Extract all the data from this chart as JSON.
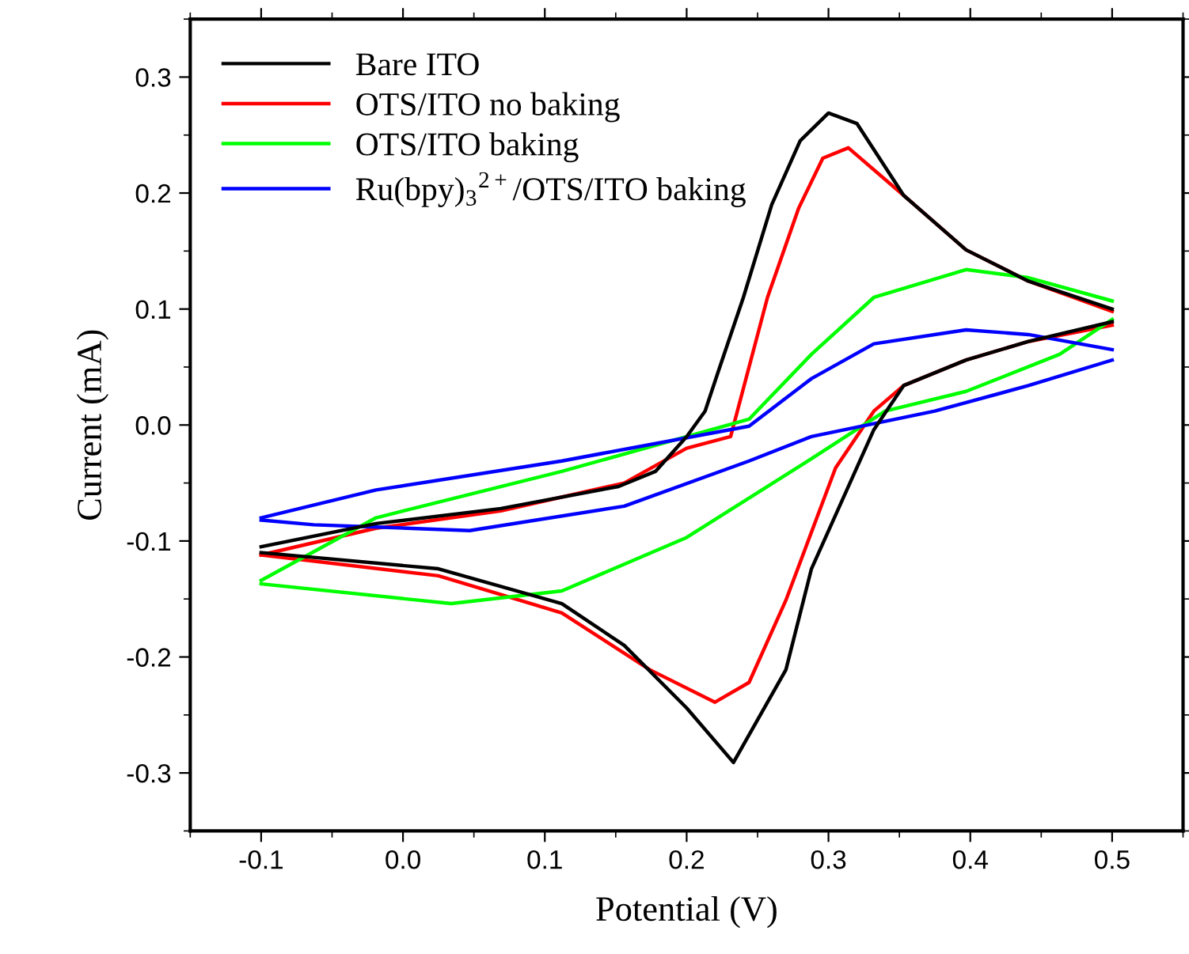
{
  "chart_data": {
    "type": "line",
    "xlabel": "Potential (V)",
    "ylabel": "Current (mA)",
    "xlim": [
      -0.15,
      0.55
    ],
    "ylim": [
      -0.35,
      0.35
    ],
    "xticks": [
      {
        "value": -0.1,
        "label": "-0.1"
      },
      {
        "value": 0.0,
        "label": "0.0"
      },
      0.1,
      0.2,
      0.3,
      0.4,
      0.5
    ],
    "yticks": [
      {
        "value": -0.3,
        "label": "-0.3"
      },
      {
        "value": -0.2,
        "label": "-0.2"
      },
      {
        "value": -0.1,
        "label": "-0.1"
      },
      {
        "value": 0.0,
        "label": "0.0"
      },
      0.1,
      0.2,
      0.3
    ],
    "grid": false,
    "legend": "top left",
    "line_style": "solid",
    "marker": "none",
    "series": [
      {
        "name": "Bare ITO",
        "color": "#000000",
        "x": [
          -0.1,
          -0.019,
          0.069,
          0.152,
          0.178,
          0.2,
          0.213,
          0.222,
          0.24,
          0.26,
          0.28,
          0.3,
          0.32,
          0.353,
          0.397,
          0.441,
          0.5
        ],
        "values": [
          -0.105,
          -0.085,
          -0.072,
          -0.053,
          -0.04,
          -0.01,
          0.012,
          0.045,
          0.11,
          0.19,
          0.245,
          0.269,
          0.26,
          0.198,
          0.151,
          0.124,
          0.1
        ]
      },
      {
        "color": "#000000",
        "x": [
          0.5,
          0.441,
          0.397,
          0.353,
          0.332,
          0.288,
          0.27,
          0.233,
          0.2,
          0.156,
          0.112,
          0.025,
          -0.1
        ],
        "values": [
          0.089,
          0.072,
          0.056,
          0.034,
          -0.004,
          -0.124,
          -0.211,
          -0.291,
          -0.244,
          -0.19,
          -0.154,
          -0.124,
          -0.11
        ]
      },
      {
        "name": "OTS/ITO no baking",
        "color": "#ff0000",
        "x": [
          -0.1,
          -0.019,
          0.069,
          0.156,
          0.2,
          0.231,
          0.257,
          0.279,
          0.296,
          0.314,
          0.353,
          0.397,
          0.441,
          0.5
        ],
        "values": [
          -0.112,
          -0.089,
          -0.074,
          -0.05,
          -0.02,
          -0.01,
          0.11,
          0.187,
          0.23,
          0.239,
          0.198,
          0.151,
          0.124,
          0.098
        ]
      },
      {
        "color": "#ff0000",
        "x": [
          0.5,
          0.441,
          0.397,
          0.353,
          0.332,
          0.305,
          0.27,
          0.244,
          0.22,
          0.174,
          0.112,
          0.025,
          -0.1
        ],
        "values": [
          0.086,
          0.072,
          0.056,
          0.034,
          0.012,
          -0.037,
          -0.151,
          -0.222,
          -0.239,
          -0.211,
          -0.162,
          -0.13,
          -0.112
        ]
      },
      {
        "name": "OTS/ITO baking",
        "color": "#00ff00",
        "x": [
          -0.1,
          -0.019,
          0.112,
          0.244,
          0.288,
          0.332,
          0.397,
          0.441,
          0.5
        ],
        "values": [
          -0.134,
          -0.08,
          -0.04,
          0.005,
          0.061,
          0.11,
          0.134,
          0.127,
          0.107
        ]
      },
      {
        "color": "#00ff00",
        "x": [
          0.5,
          0.463,
          0.397,
          0.34,
          0.288,
          0.2,
          0.112,
          0.034,
          -0.1
        ],
        "values": [
          0.091,
          0.061,
          0.029,
          0.012,
          -0.029,
          -0.097,
          -0.143,
          -0.154,
          -0.137
        ]
      },
      {
        "name": "Ru(bpy)$_{3}$$^{2+}$/OTS/ITO baking",
        "color": "#0000ff",
        "x": [
          -0.1,
          -0.019,
          0.112,
          0.244,
          0.288,
          0.332,
          0.397,
          0.441,
          0.5
        ],
        "values": [
          -0.08,
          -0.056,
          -0.031,
          -0.001,
          0.04,
          0.07,
          0.082,
          0.078,
          0.065
        ]
      },
      {
        "color": "#0000ff",
        "x": [
          0.5,
          0.441,
          0.375,
          0.288,
          0.244,
          0.156,
          0.047,
          -0.063,
          -0.1
        ],
        "values": [
          0.056,
          0.034,
          0.012,
          -0.01,
          -0.031,
          -0.07,
          -0.091,
          -0.086,
          -0.082
        ]
      }
    ]
  }
}
